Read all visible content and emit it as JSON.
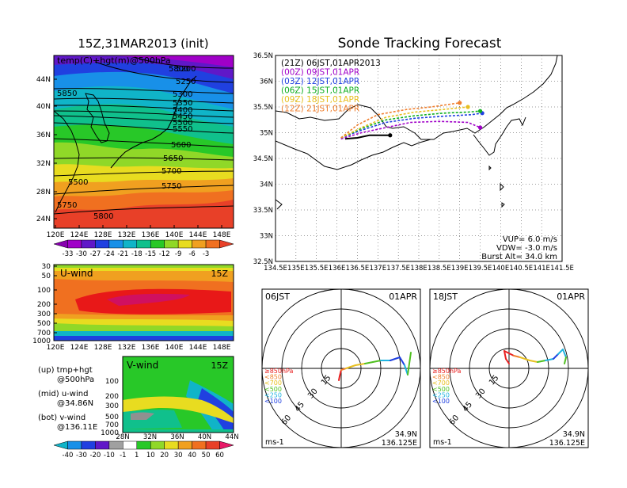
{
  "page": {
    "title": "Sonde Tracking Forecast"
  },
  "hgt_panel": {
    "title": "15Z,31MAR2013 (init)",
    "label": "temp(C)+hgt(m)@500hPa",
    "lat_ticks": [
      "44N",
      "40N",
      "36N",
      "32N",
      "28N",
      "24N"
    ],
    "lon_ticks": [
      "120E",
      "124E",
      "128E",
      "132E",
      "136E",
      "140E",
      "144E",
      "148E"
    ],
    "contour_labels": [
      "5200",
      "5250",
      "5300",
      "5350",
      "5400",
      "5450",
      "5500",
      "5550",
      "5600",
      "5650",
      "5700",
      "5750",
      "5800",
      "5850",
      "5500",
      "5750",
      "5800"
    ],
    "colorbar_labels": [
      "-33",
      "-30",
      "-27",
      "-24",
      "-21",
      "-18",
      "-15",
      "-12",
      "-9",
      "-6",
      "-3"
    ],
    "colors": [
      "#8800b0",
      "#a000c8",
      "#6018c8",
      "#2040e0",
      "#1890e8",
      "#10b4c8",
      "#10c08c",
      "#28c828",
      "#90d828",
      "#e8dc20",
      "#f0a020",
      "#f07020",
      "#e84028"
    ]
  },
  "u_panel": {
    "label": "U-wind",
    "time": "15Z",
    "p_ticks": [
      "30",
      "50",
      "100",
      "200",
      "300",
      "500",
      "700",
      "1000"
    ],
    "lon_ticks": [
      "120E",
      "124E",
      "128E",
      "132E",
      "136E",
      "140E",
      "144E",
      "148E"
    ]
  },
  "v_panel": {
    "label": "V-wind",
    "time": "15Z",
    "p_ticks": [
      "100",
      "200",
      "300",
      "500",
      "700",
      "1000"
    ],
    "lat_ticks": [
      "28N",
      "32N",
      "36N",
      "40N",
      "44N"
    ],
    "colorbar_labels": [
      "-40",
      "-30",
      "-20",
      "-10",
      "-1",
      "1",
      "10",
      "20",
      "30",
      "40",
      "50",
      "60"
    ]
  },
  "notes": {
    "line1a": "(up) tmp+hgt",
    "line1b": "@500hPa",
    "line2a": "(mid) u-wind",
    "line2b": "@34.86N",
    "line3a": "(bot) v-wind",
    "line3b": "@136.11E"
  },
  "track_panel": {
    "lat_ticks": [
      "36.5N",
      "36N",
      "35.5N",
      "35N",
      "34.5N",
      "34N",
      "33.5N",
      "33N",
      "32.5N"
    ],
    "lon_ticks": [
      "134.5E",
      "135E",
      "135.5E",
      "136E",
      "136.5E",
      "137E",
      "137.5E",
      "138E",
      "138.5E",
      "139E",
      "139.5E",
      "140E",
      "140.5E",
      "141E",
      "141.5E"
    ],
    "legend": [
      {
        "text": "(21Z)  06JST,01APR2013",
        "color": "#000000"
      },
      {
        "text": "(00Z)  09JST,01APR",
        "color": "#a000c8"
      },
      {
        "text": "(03Z)  12JST,01APR",
        "color": "#2040e0"
      },
      {
        "text": "(06Z)  15JST,01APR",
        "color": "#10b020"
      },
      {
        "text": "(09Z)  18JST,01APR",
        "color": "#e8c020"
      },
      {
        "text": "(12Z)  21JST,01APR",
        "color": "#f08030"
      }
    ],
    "vup": "VUP=  6.0  m/s",
    "vdw": "VDW= -3.0  m/s",
    "burst": "Burst Alt=  34.0  km"
  },
  "hodo_left": {
    "time_label": "06JST",
    "date_label": "01APR",
    "ring_labels": [
      "15",
      "30",
      "45",
      "60"
    ],
    "legend": [
      "≥850hPa",
      "<850",
      "<700",
      "<500",
      "<250",
      "<100"
    ],
    "legend_colors": [
      "#e82020",
      "#f08030",
      "#e8c020",
      "#50c020",
      "#20b4e0",
      "#2040e0"
    ],
    "units": "ms-1",
    "lat": "34.9N",
    "lon": "136.125E"
  },
  "hodo_right": {
    "time_label": "18JST",
    "date_label": "01APR",
    "ring_labels": [
      "15",
      "30",
      "45",
      "60"
    ],
    "legend": [
      "≥850hPa",
      "<850",
      "<700",
      "<500",
      "<250",
      "<100"
    ],
    "legend_colors": [
      "#e82020",
      "#f08030",
      "#e8c020",
      "#50c020",
      "#20b4e0",
      "#2040e0"
    ],
    "units": "ms-1",
    "lat": "34.9N",
    "lon": "136.125E"
  },
  "chart_data": [
    {
      "type": "heatmap",
      "title": "15Z,31MAR2013 (init)",
      "annotation": "temp(C)+hgt(m)@500hPa",
      "xlim": [
        "120E",
        "150E"
      ],
      "ylim": [
        "22N",
        "48N"
      ],
      "colorbar": [
        -33,
        -30,
        -27,
        -24,
        -21,
        -18,
        -15,
        -12,
        -9,
        -6,
        -3
      ],
      "contours": [
        5200,
        5250,
        5300,
        5350,
        5400,
        5450,
        5500,
        5550,
        5600,
        5650,
        5700,
        5750,
        5800,
        5850
      ]
    },
    {
      "type": "line",
      "title": "Sonde Tracking Forecast",
      "xlabel": "",
      "ylabel": "",
      "xlim": [
        134.5,
        141.5
      ],
      "ylim": [
        32.5,
        36.5
      ],
      "series": [
        {
          "name": "(21Z)  06JST,01APR2013",
          "x": [
            136.2,
            136.5,
            136.8,
            137.0,
            137.3
          ],
          "y": [
            34.88,
            34.9,
            34.95,
            34.95,
            34.95
          ]
        },
        {
          "name": "(00Z)  09JST,01APR",
          "x": [
            136.1,
            136.6,
            137.2,
            137.8,
            138.5,
            139.2,
            139.5
          ],
          "y": [
            34.88,
            35.0,
            35.1,
            35.2,
            35.22,
            35.2,
            35.1
          ]
        },
        {
          "name": "(03Z)  12JST,01APR",
          "x": [
            136.1,
            136.6,
            137.2,
            137.9,
            138.6,
            139.3,
            139.55
          ],
          "y": [
            34.9,
            35.05,
            35.2,
            35.28,
            35.32,
            35.35,
            35.38
          ]
        },
        {
          "name": "(06Z)  15JST,01APR",
          "x": [
            136.1,
            136.6,
            137.2,
            137.9,
            138.6,
            139.2,
            139.5
          ],
          "y": [
            34.9,
            35.08,
            35.25,
            35.33,
            35.38,
            35.4,
            35.42
          ]
        },
        {
          "name": "(09Z)  18JST,01APR",
          "x": [
            136.1,
            136.6,
            137.2,
            137.9,
            138.6,
            139.2
          ],
          "y": [
            34.9,
            35.1,
            35.3,
            35.4,
            35.45,
            35.5
          ]
        },
        {
          "name": "(12Z)  21JST,01APR",
          "x": [
            136.1,
            136.5,
            137.0,
            137.7,
            138.3,
            139.0
          ],
          "y": [
            34.9,
            35.15,
            35.35,
            35.45,
            35.5,
            35.58
          ]
        }
      ]
    }
  ]
}
